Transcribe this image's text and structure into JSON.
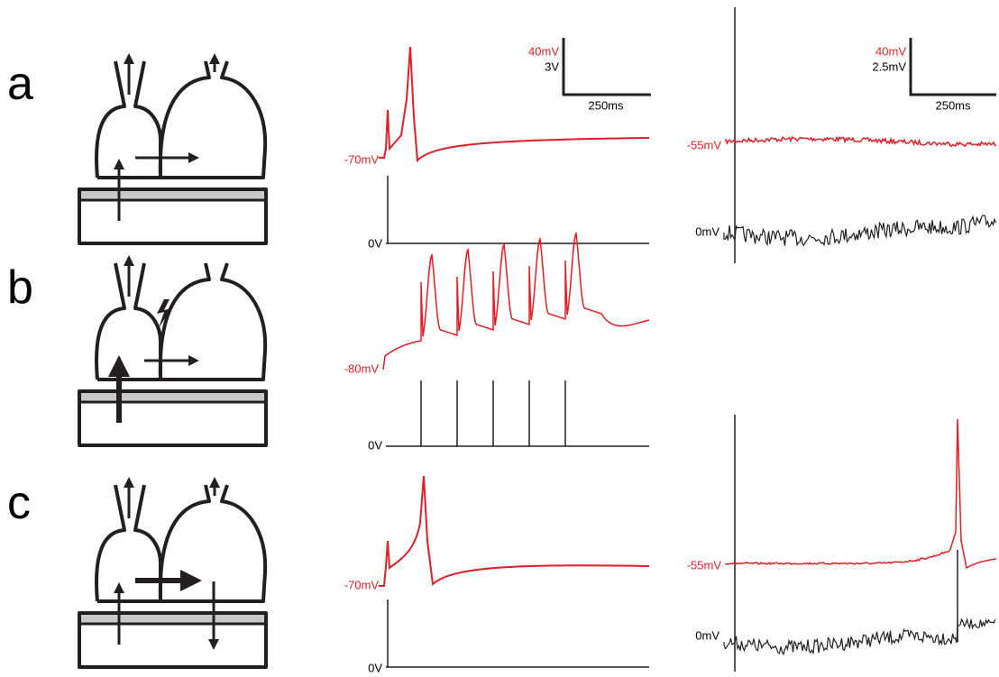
{
  "panels": [
    {
      "label": "a",
      "middle": {
        "v_label": "-70mV",
        "stim_label": "0V"
      },
      "right": {
        "v_label": "-55mV",
        "stim_label": "0mV"
      }
    },
    {
      "label": "b",
      "middle": {
        "v_label": "-80mV",
        "stim_label": "0V"
      }
    },
    {
      "label": "c",
      "middle": {
        "v_label": "-70mV",
        "stim_label": "0V"
      },
      "right": {
        "v_label": "-55mV",
        "stim_label": "0mV"
      }
    }
  ],
  "scale_bars": [
    {
      "red": "40mV",
      "black": "3V",
      "time": "250ms"
    },
    {
      "red": "40mV",
      "black": "2.5mV",
      "time": "250ms"
    }
  ]
}
